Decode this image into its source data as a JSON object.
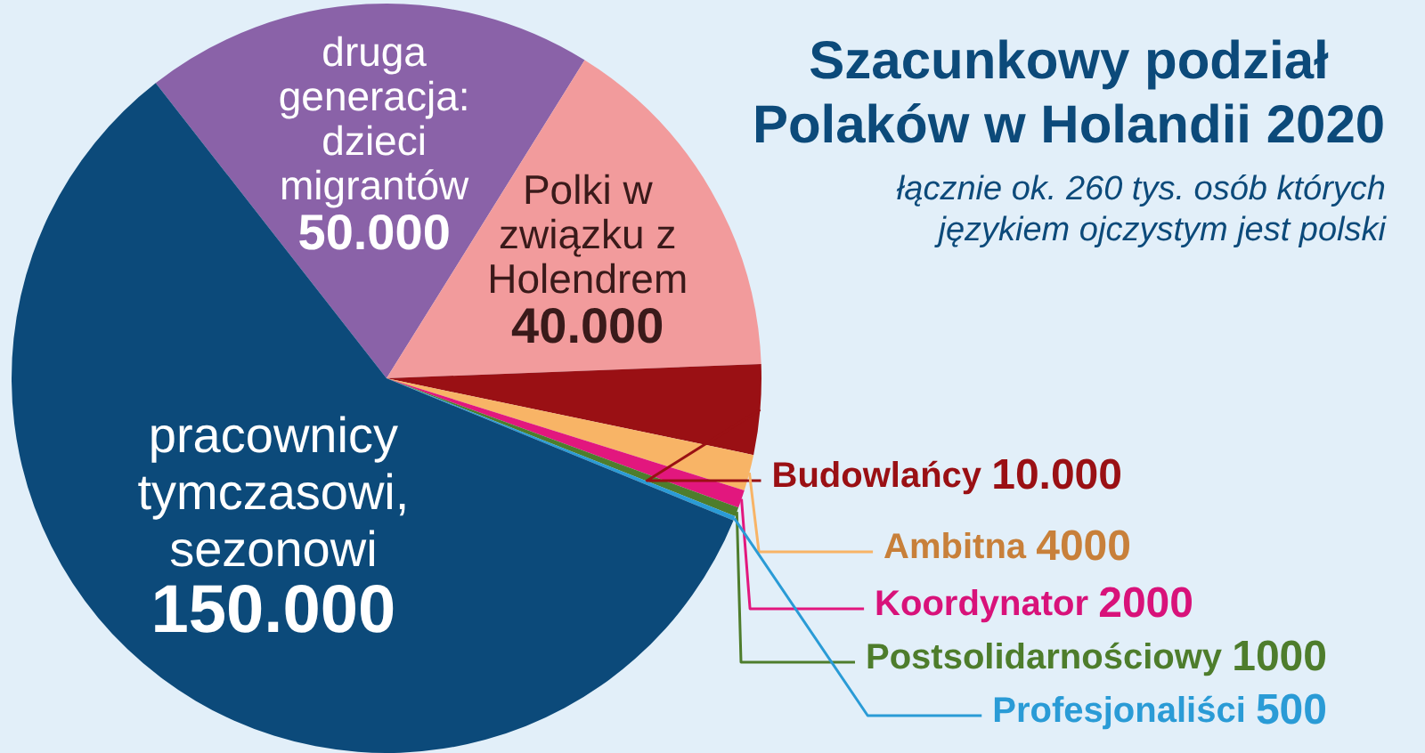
{
  "chart_data": {
    "type": "pie",
    "title": "Szacunkowy podział Polaków w Holandii 2020",
    "subtitle": "łącznie ok. 260 tys. osób których językiem ojczystym jest polski",
    "categories": [
      "druga generacja: dzieci migrantów",
      "Polki w związku z Holendrem",
      "Budowlańcy",
      "Ambitna",
      "Koordynator",
      "Postsolidarnościowy",
      "Profesjonaliści",
      "pracownicy tymczasowi, sezonowi"
    ],
    "values": [
      50000,
      40000,
      10000,
      4000,
      2000,
      1000,
      500,
      150000
    ],
    "value_labels": [
      "50.000",
      "40.000",
      "10.000",
      "4000",
      "2000",
      "1000",
      "500",
      "150.000"
    ],
    "colors": [
      "#8a62a8",
      "#f29b9c",
      "#9a1014",
      "#f8b466",
      "#e2177e",
      "#4e7d2c",
      "#2a9bd6",
      "#0c4a7a"
    ],
    "legend": false
  }
}
